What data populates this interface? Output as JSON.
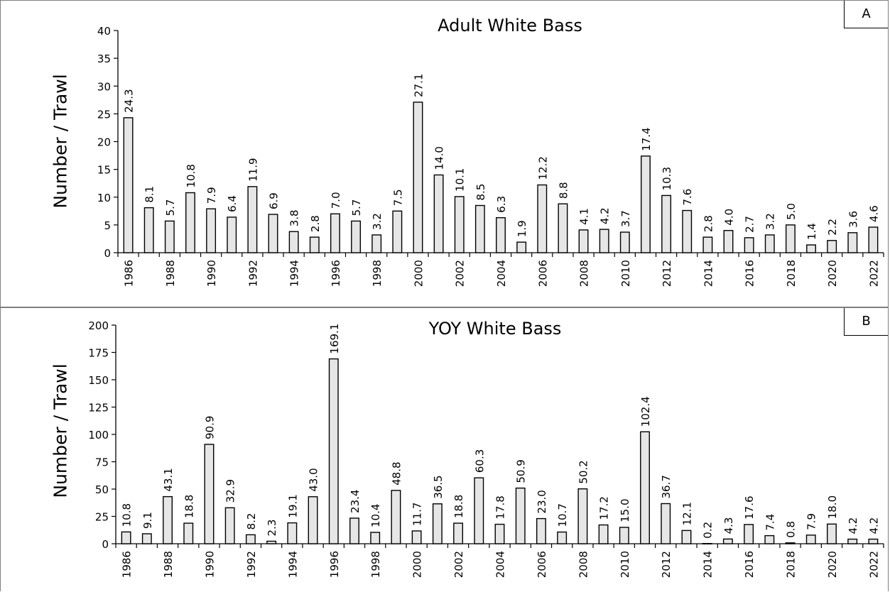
{
  "chart_data": [
    {
      "type": "bar",
      "panel_label": "A",
      "title": "Adult White Bass",
      "ylabel": "Number / Trawl",
      "xlabel": "",
      "ylim": [
        0,
        40
      ],
      "yticks": [
        0,
        5,
        10,
        15,
        20,
        25,
        30,
        35,
        40
      ],
      "categories": [
        "1986",
        "1987",
        "1988",
        "1989",
        "1990",
        "1991",
        "1992",
        "1993",
        "1994",
        "1995",
        "1996",
        "1997",
        "1998",
        "1999",
        "2000",
        "2001",
        "2002",
        "2003",
        "2004",
        "2005",
        "2006",
        "2007",
        "2008",
        "2009",
        "2010",
        "2011",
        "2012",
        "2013",
        "2014",
        "2015",
        "2016",
        "2017",
        "2018",
        "2019",
        "2020",
        "2021",
        "2022"
      ],
      "x_tick_labels": [
        "1986",
        "1988",
        "1990",
        "1992",
        "1994",
        "1996",
        "1998",
        "2000",
        "2002",
        "2004",
        "2006",
        "2008",
        "2010",
        "2012",
        "2014",
        "2016",
        "2018",
        "2020",
        "2022"
      ],
      "values": [
        24.3,
        8.1,
        5.7,
        10.8,
        7.9,
        6.4,
        11.9,
        6.9,
        3.8,
        2.8,
        7.0,
        5.7,
        3.2,
        7.5,
        27.1,
        14.0,
        10.1,
        8.5,
        6.3,
        1.9,
        12.2,
        8.8,
        4.1,
        4.2,
        3.7,
        17.4,
        10.3,
        7.6,
        2.8,
        4.0,
        2.7,
        3.2,
        5.0,
        1.4,
        2.2,
        3.6,
        4.6
      ],
      "data_labels": [
        "24.3",
        "8.1",
        "5.7",
        "10.8",
        "7.9",
        "6.4",
        "11.9",
        "6.9",
        "3.8",
        "2.8",
        "7.0",
        "5.7",
        "3.2",
        "7.5",
        "27.1",
        "14.0",
        "10.1",
        "8.5",
        "6.3",
        "1.9",
        "12.2",
        "8.8",
        "4.1",
        "4.2",
        "3.7",
        "17.4",
        "10.3",
        "7.6",
        "2.8",
        "4.0",
        "2.7",
        "3.2",
        "5.0",
        "1.4",
        "2.2",
        "3.6",
        "4.6"
      ],
      "bar_fill": "#e6e6e6",
      "bar_stroke": "#000000",
      "grid": false,
      "legend": "none"
    },
    {
      "type": "bar",
      "panel_label": "B",
      "title": "YOY White Bass",
      "ylabel": "Number / Trawl",
      "xlabel": "",
      "ylim": [
        0,
        200
      ],
      "yticks": [
        0,
        25,
        50,
        75,
        100,
        125,
        150,
        175,
        200
      ],
      "categories": [
        "1986",
        "1987",
        "1988",
        "1989",
        "1990",
        "1991",
        "1992",
        "1993",
        "1994",
        "1995",
        "1996",
        "1997",
        "1998",
        "1999",
        "2000",
        "2001",
        "2002",
        "2003",
        "2004",
        "2005",
        "2006",
        "2007",
        "2008",
        "2009",
        "2010",
        "2011",
        "2012",
        "2013",
        "2014",
        "2015",
        "2016",
        "2017",
        "2018",
        "2019",
        "2020",
        "2021",
        "2022"
      ],
      "x_tick_labels": [
        "1986",
        "1988",
        "1990",
        "1992",
        "1994",
        "1996",
        "1998",
        "2000",
        "2002",
        "2004",
        "2006",
        "2008",
        "2010",
        "2012",
        "2014",
        "2016",
        "2018",
        "2020",
        "2022"
      ],
      "values": [
        10.8,
        9.1,
        43.1,
        18.8,
        90.9,
        32.9,
        8.2,
        2.3,
        19.1,
        43.0,
        169.1,
        23.4,
        10.4,
        48.8,
        11.7,
        36.5,
        18.8,
        60.3,
        17.8,
        50.9,
        23.0,
        10.7,
        50.2,
        17.2,
        15.0,
        102.4,
        36.7,
        12.1,
        0.2,
        4.3,
        17.6,
        7.4,
        0.8,
        7.9,
        18.0,
        4.2,
        4.2
      ],
      "data_labels": [
        "10.8",
        "9.1",
        "43.1",
        "18.8",
        "90.9",
        "32.9",
        "8.2",
        "2.3",
        "19.1",
        "43.0",
        "169.1",
        "23.4",
        "10.4",
        "48.8",
        "11.7",
        "36.5",
        "18.8",
        "60.3",
        "17.8",
        "50.9",
        "23.0",
        "10.7",
        "50.2",
        "17.2",
        "15.0",
        "102.4",
        "36.7",
        "12.1",
        "0.2",
        "4.3",
        "17.6",
        "7.4",
        "0.8",
        "7.9",
        "18.0",
        "4.2",
        "4.2"
      ],
      "bar_fill": "#e6e6e6",
      "bar_stroke": "#000000",
      "grid": false,
      "legend": "none"
    }
  ]
}
